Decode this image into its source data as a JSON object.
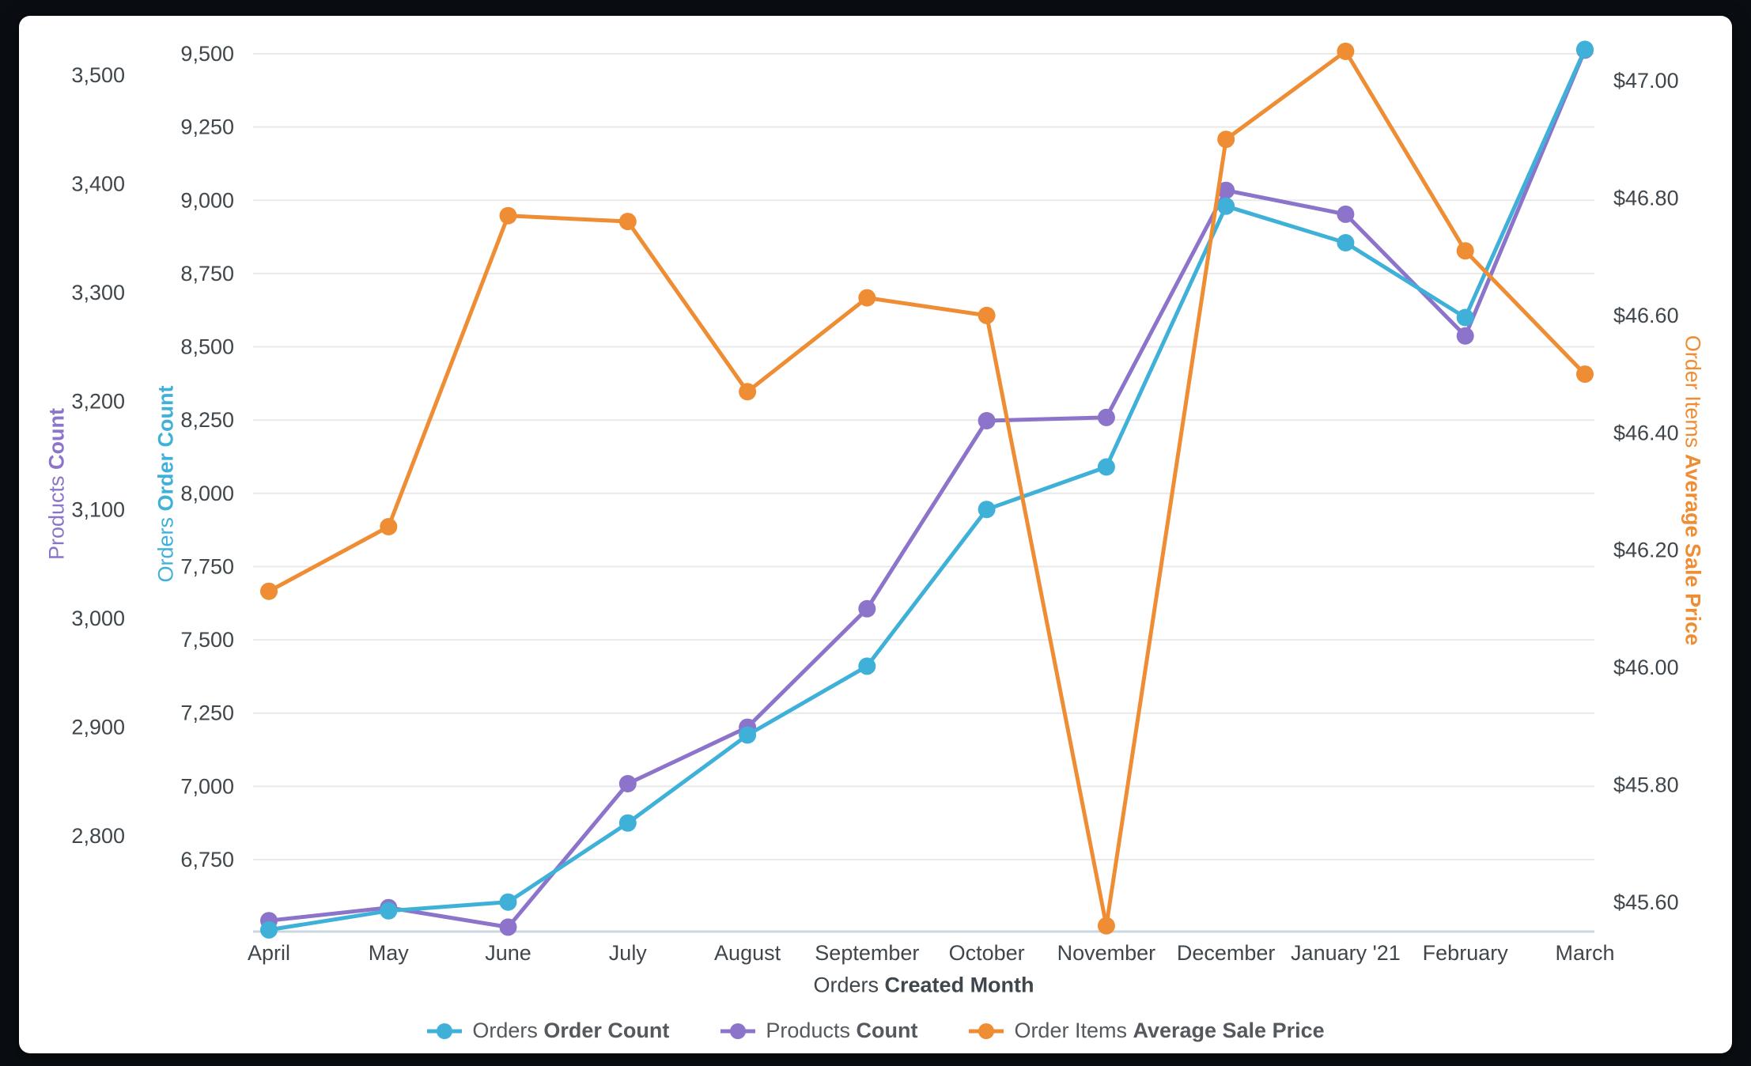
{
  "window": {
    "background": "#0a0e12",
    "card_background": "#ffffff"
  },
  "chart_data": {
    "type": "line",
    "categories": [
      "April",
      "May",
      "June",
      "July",
      "August",
      "September",
      "October",
      "November",
      "December",
      "January '21",
      "February",
      "March"
    ],
    "x_axis": {
      "title_normal": "Orders",
      "title_bold": "Created Month"
    },
    "axes": {
      "products": {
        "title_normal": "Products",
        "title_bold": "Count",
        "color": "#8B74C9",
        "side": "left-outer",
        "ticks": [
          "2,800",
          "2,900",
          "3,000",
          "3,100",
          "3,200",
          "3,300",
          "3,400",
          "3,500"
        ],
        "tick_values": [
          2800,
          2900,
          3000,
          3100,
          3200,
          3300,
          3400,
          3500
        ],
        "visible_range": [
          2712,
          3543
        ]
      },
      "orders": {
        "title_normal": "Orders",
        "title_bold": "Order Count",
        "color": "#3FB1D8",
        "side": "left-inner",
        "ticks": [
          "6,750",
          "7,000",
          "7,250",
          "7,500",
          "7,750",
          "8,000",
          "8,250",
          "8,500",
          "8,750",
          "9,000",
          "9,250",
          "9,500"
        ],
        "tick_values": [
          6750,
          7000,
          7250,
          7500,
          7750,
          8000,
          8250,
          8500,
          8750,
          9000,
          9250,
          9500
        ],
        "visible_range": [
          6500,
          9560
        ]
      },
      "price": {
        "title_normal": "Order Items",
        "title_bold": "Average Sale Price",
        "color": "#EE8D33",
        "side": "right",
        "ticks": [
          "$45.60",
          "$45.80",
          "$46.00",
          "$46.20",
          "$46.40",
          "$46.60",
          "$46.80",
          "$47.00"
        ],
        "tick_values": [
          45.6,
          45.8,
          46.0,
          46.2,
          46.4,
          46.6,
          46.8,
          47.0
        ],
        "visible_range": [
          45.55,
          47.07
        ]
      }
    },
    "series": [
      {
        "id": "orders-order-count",
        "name_normal": "Orders",
        "name_bold": "Order Count",
        "axis": "orders",
        "color": "#3FB1D8",
        "z": 2,
        "values": [
          6510,
          6575,
          6605,
          6875,
          7175,
          7410,
          7945,
          8090,
          8980,
          8855,
          8600,
          9515
        ]
      },
      {
        "id": "products-count",
        "name_normal": "Products",
        "name_bold": "Count",
        "axis": "products",
        "color": "#8B74C9",
        "z": 1,
        "values": [
          2722,
          2734,
          2716,
          2848,
          2900,
          3009,
          3182,
          3185,
          3394,
          3372,
          3260,
          3523
        ]
      },
      {
        "id": "order-items-average-sale-price",
        "name_normal": "Order Items",
        "name_bold": "Average Sale Price",
        "axis": "price",
        "color": "#EE8D33",
        "z": 3,
        "values": [
          46.13,
          46.24,
          46.77,
          46.76,
          46.47,
          46.63,
          46.6,
          45.56,
          46.9,
          47.05,
          46.71,
          46.5
        ]
      }
    ],
    "grid": {
      "color": "#e9e9e9",
      "baseline_color": "#c9d6de",
      "show_horizontal": true,
      "show_vertical": false
    },
    "legend_position": "bottom"
  }
}
